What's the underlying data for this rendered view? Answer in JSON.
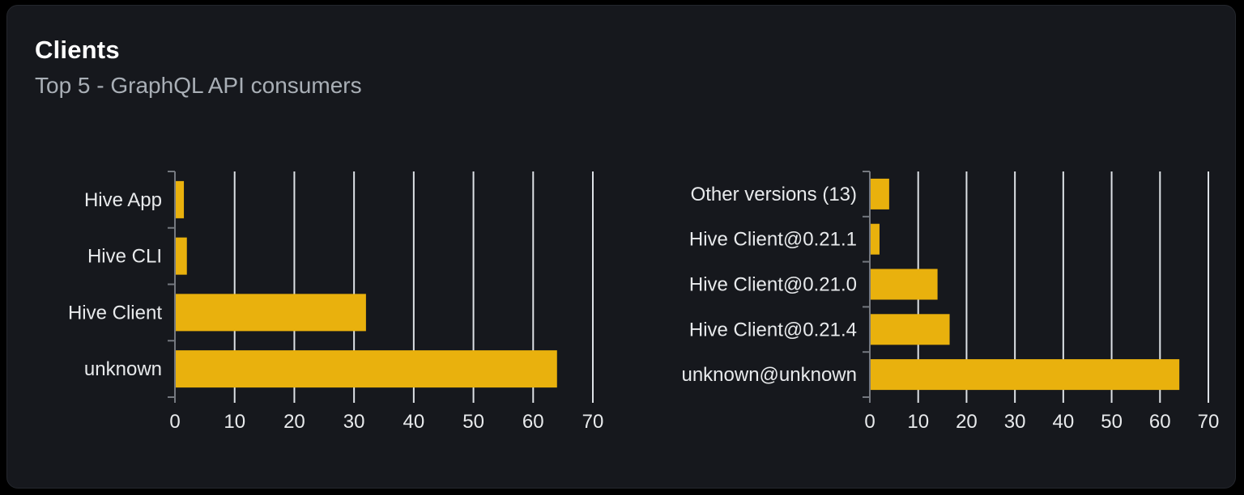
{
  "header": {
    "title": "Clients",
    "subtitle": "Top 5 - GraphQL API consumers"
  },
  "colors": {
    "page_bg": "#000000",
    "card_bg": "#16181d",
    "card_border": "#24272d",
    "bar": "#e9b10d",
    "grid": "#dde1e6",
    "axis": "#74787f",
    "text": "#e8eaec",
    "subtitle": "#a9afb6",
    "title": "#ffffff"
  },
  "chart_data": [
    {
      "type": "bar",
      "orientation": "horizontal",
      "categories": [
        "Hive App",
        "Hive CLI",
        "Hive Client",
        "unknown"
      ],
      "values": [
        1.5,
        2,
        32,
        64
      ],
      "xlim": [
        0,
        70
      ],
      "xticks": [
        0,
        10,
        20,
        30,
        40,
        50,
        60,
        70
      ],
      "grid": true,
      "legend": false
    },
    {
      "type": "bar",
      "orientation": "horizontal",
      "categories": [
        "Other versions (13)",
        "Hive Client@0.21.1",
        "Hive Client@0.21.0",
        "Hive Client@0.21.4",
        "unknown@unknown"
      ],
      "values": [
        4,
        2,
        14,
        16.5,
        64
      ],
      "xlim": [
        0,
        70
      ],
      "xticks": [
        0,
        10,
        20,
        30,
        40,
        50,
        60,
        70
      ],
      "grid": true,
      "legend": false
    }
  ]
}
